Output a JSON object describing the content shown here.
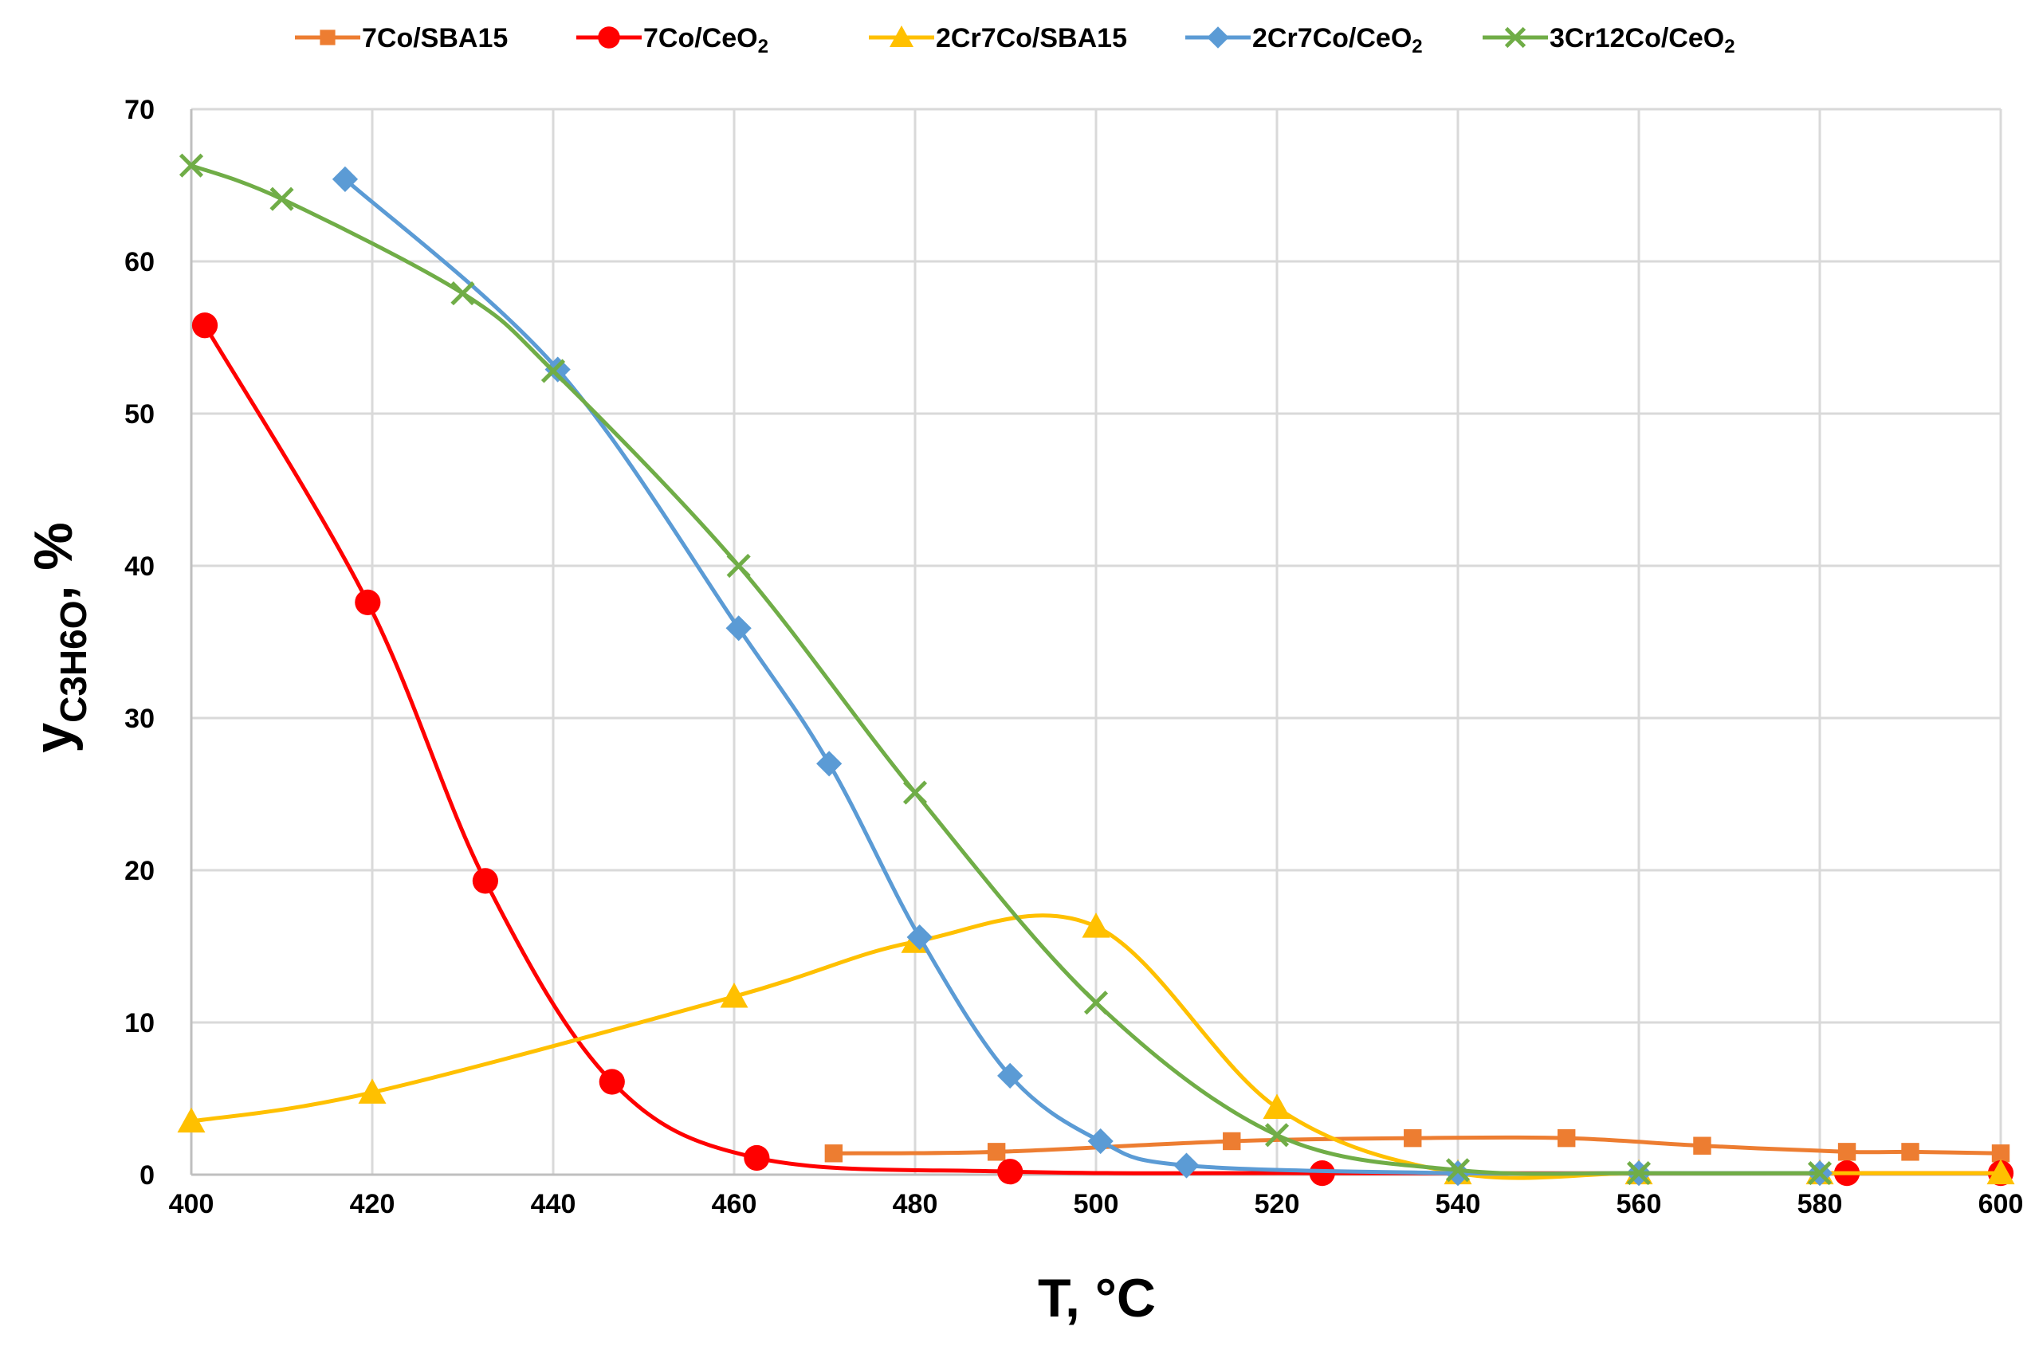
{
  "chart_data": {
    "type": "line",
    "title": "",
    "xlabel": "T, °C",
    "ylabel_main": "y",
    "ylabel_sub": "C3H6O",
    "ylabel_unit": ", %",
    "xlim": [
      400,
      600
    ],
    "ylim": [
      0,
      70
    ],
    "xticks": [
      "400",
      "420",
      "440",
      "460",
      "480",
      "500",
      "520",
      "540",
      "560",
      "580",
      "600"
    ],
    "yticks": [
      "0",
      "10",
      "20",
      "30",
      "40",
      "50",
      "60",
      "70"
    ],
    "grid": true,
    "legend_position": "top",
    "series": [
      {
        "name": "7Co/SBA15",
        "legend_base": "7Co/SBA15",
        "legend_sub": "",
        "color": "#ed7d31",
        "marker": "square",
        "x": [
          471,
          489,
          515,
          535,
          552,
          567,
          583,
          590,
          600
        ],
        "y": [
          1.4,
          1.5,
          2.2,
          2.4,
          2.4,
          1.9,
          1.5,
          1.5,
          1.4
        ]
      },
      {
        "name": "7Co/CeO2",
        "legend_base": "7Co/CeO",
        "legend_sub": "2",
        "color": "#ff0000",
        "marker": "circle",
        "x": [
          401.5,
          419.5,
          432.5,
          446.5,
          462.5,
          490.5,
          525,
          583,
          600
        ],
        "y": [
          55.8,
          37.6,
          19.3,
          6.1,
          1.1,
          0.2,
          0.1,
          0.1,
          0.1
        ]
      },
      {
        "name": "2Cr7Co/SBA15",
        "legend_base": "2Cr7Co/SBA15",
        "legend_sub": "",
        "color": "#ffc000",
        "marker": "triangle",
        "x": [
          400,
          420,
          460,
          480,
          500,
          520,
          540,
          560,
          580,
          600
        ],
        "y": [
          3.5,
          5.4,
          11.7,
          15.3,
          16.3,
          4.4,
          0.1,
          0.1,
          0.1,
          0.1
        ]
      },
      {
        "name": "2Cr7Co/CeO2",
        "legend_base": "2Cr7Co/CeO",
        "legend_sub": "2",
        "color": "#5b9bd5",
        "marker": "diamond",
        "x": [
          417,
          440.5,
          460.5,
          470.5,
          480.5,
          490.5,
          500.5,
          510,
          540,
          560,
          580
        ],
        "y": [
          65.4,
          52.9,
          35.9,
          27.0,
          15.6,
          6.5,
          2.2,
          0.6,
          0.1,
          0.1,
          0.1
        ]
      },
      {
        "name": "3Cr12Co/CeO2",
        "legend_base": "3Cr12Co/CeO",
        "legend_sub": "2",
        "color": "#70ad47",
        "marker": "x",
        "x": [
          400,
          410,
          430,
          440,
          460.5,
          480,
          500,
          520,
          540,
          560,
          580
        ],
        "y": [
          66.3,
          64.1,
          57.9,
          52.8,
          40.0,
          25.1,
          11.3,
          2.6,
          0.3,
          0.1,
          0.1
        ]
      }
    ]
  }
}
